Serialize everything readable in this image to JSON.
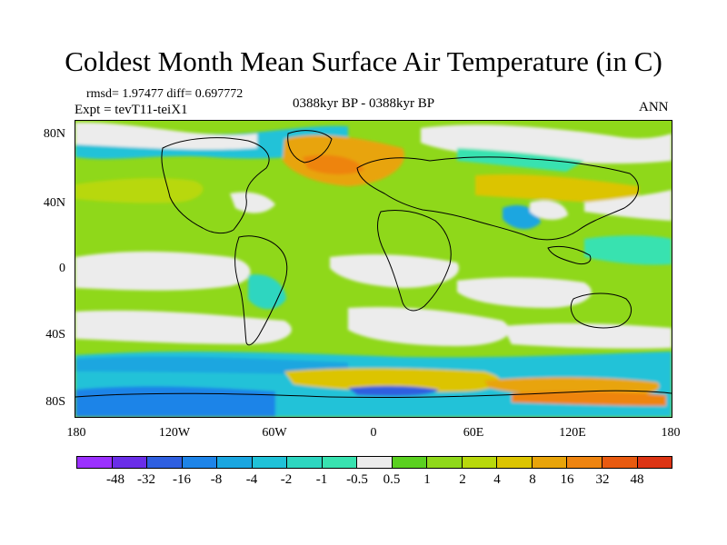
{
  "title": "Coldest Month Mean Surface Air Temperature (in C)",
  "stats": "rmsd= 1.97477 diff= 0.697772",
  "experiment": "Expt = tevT11-teiX1",
  "period": "0388kyr BP - 0388kyr BP",
  "season": "ANN",
  "map": {
    "lon_range": [
      -180,
      180
    ],
    "lat_range": [
      -90,
      90
    ],
    "lat_ticks": [
      "80N",
      "40N",
      "0",
      "40S",
      "80S"
    ],
    "lon_ticks": [
      "180",
      "120W",
      "60W",
      "0",
      "60E",
      "120E",
      "180"
    ]
  },
  "colorbar": {
    "colors": [
      "#9b30ff",
      "#6a2ee8",
      "#2f5fe0",
      "#1e84e8",
      "#1aa6e0",
      "#20c2d8",
      "#2ed6c0",
      "#38e2b0",
      "#ececec",
      "#5ad020",
      "#8fd81a",
      "#b8d80c",
      "#dcc400",
      "#e8a40a",
      "#ee8410",
      "#e85a10",
      "#dc3414"
    ],
    "labels": [
      "-48",
      "-32",
      "-16",
      "-8",
      "-4",
      "-2",
      "-1",
      "-0.5",
      "0.5",
      "1",
      "2",
      "4",
      "8",
      "16",
      "32",
      "48"
    ]
  }
}
